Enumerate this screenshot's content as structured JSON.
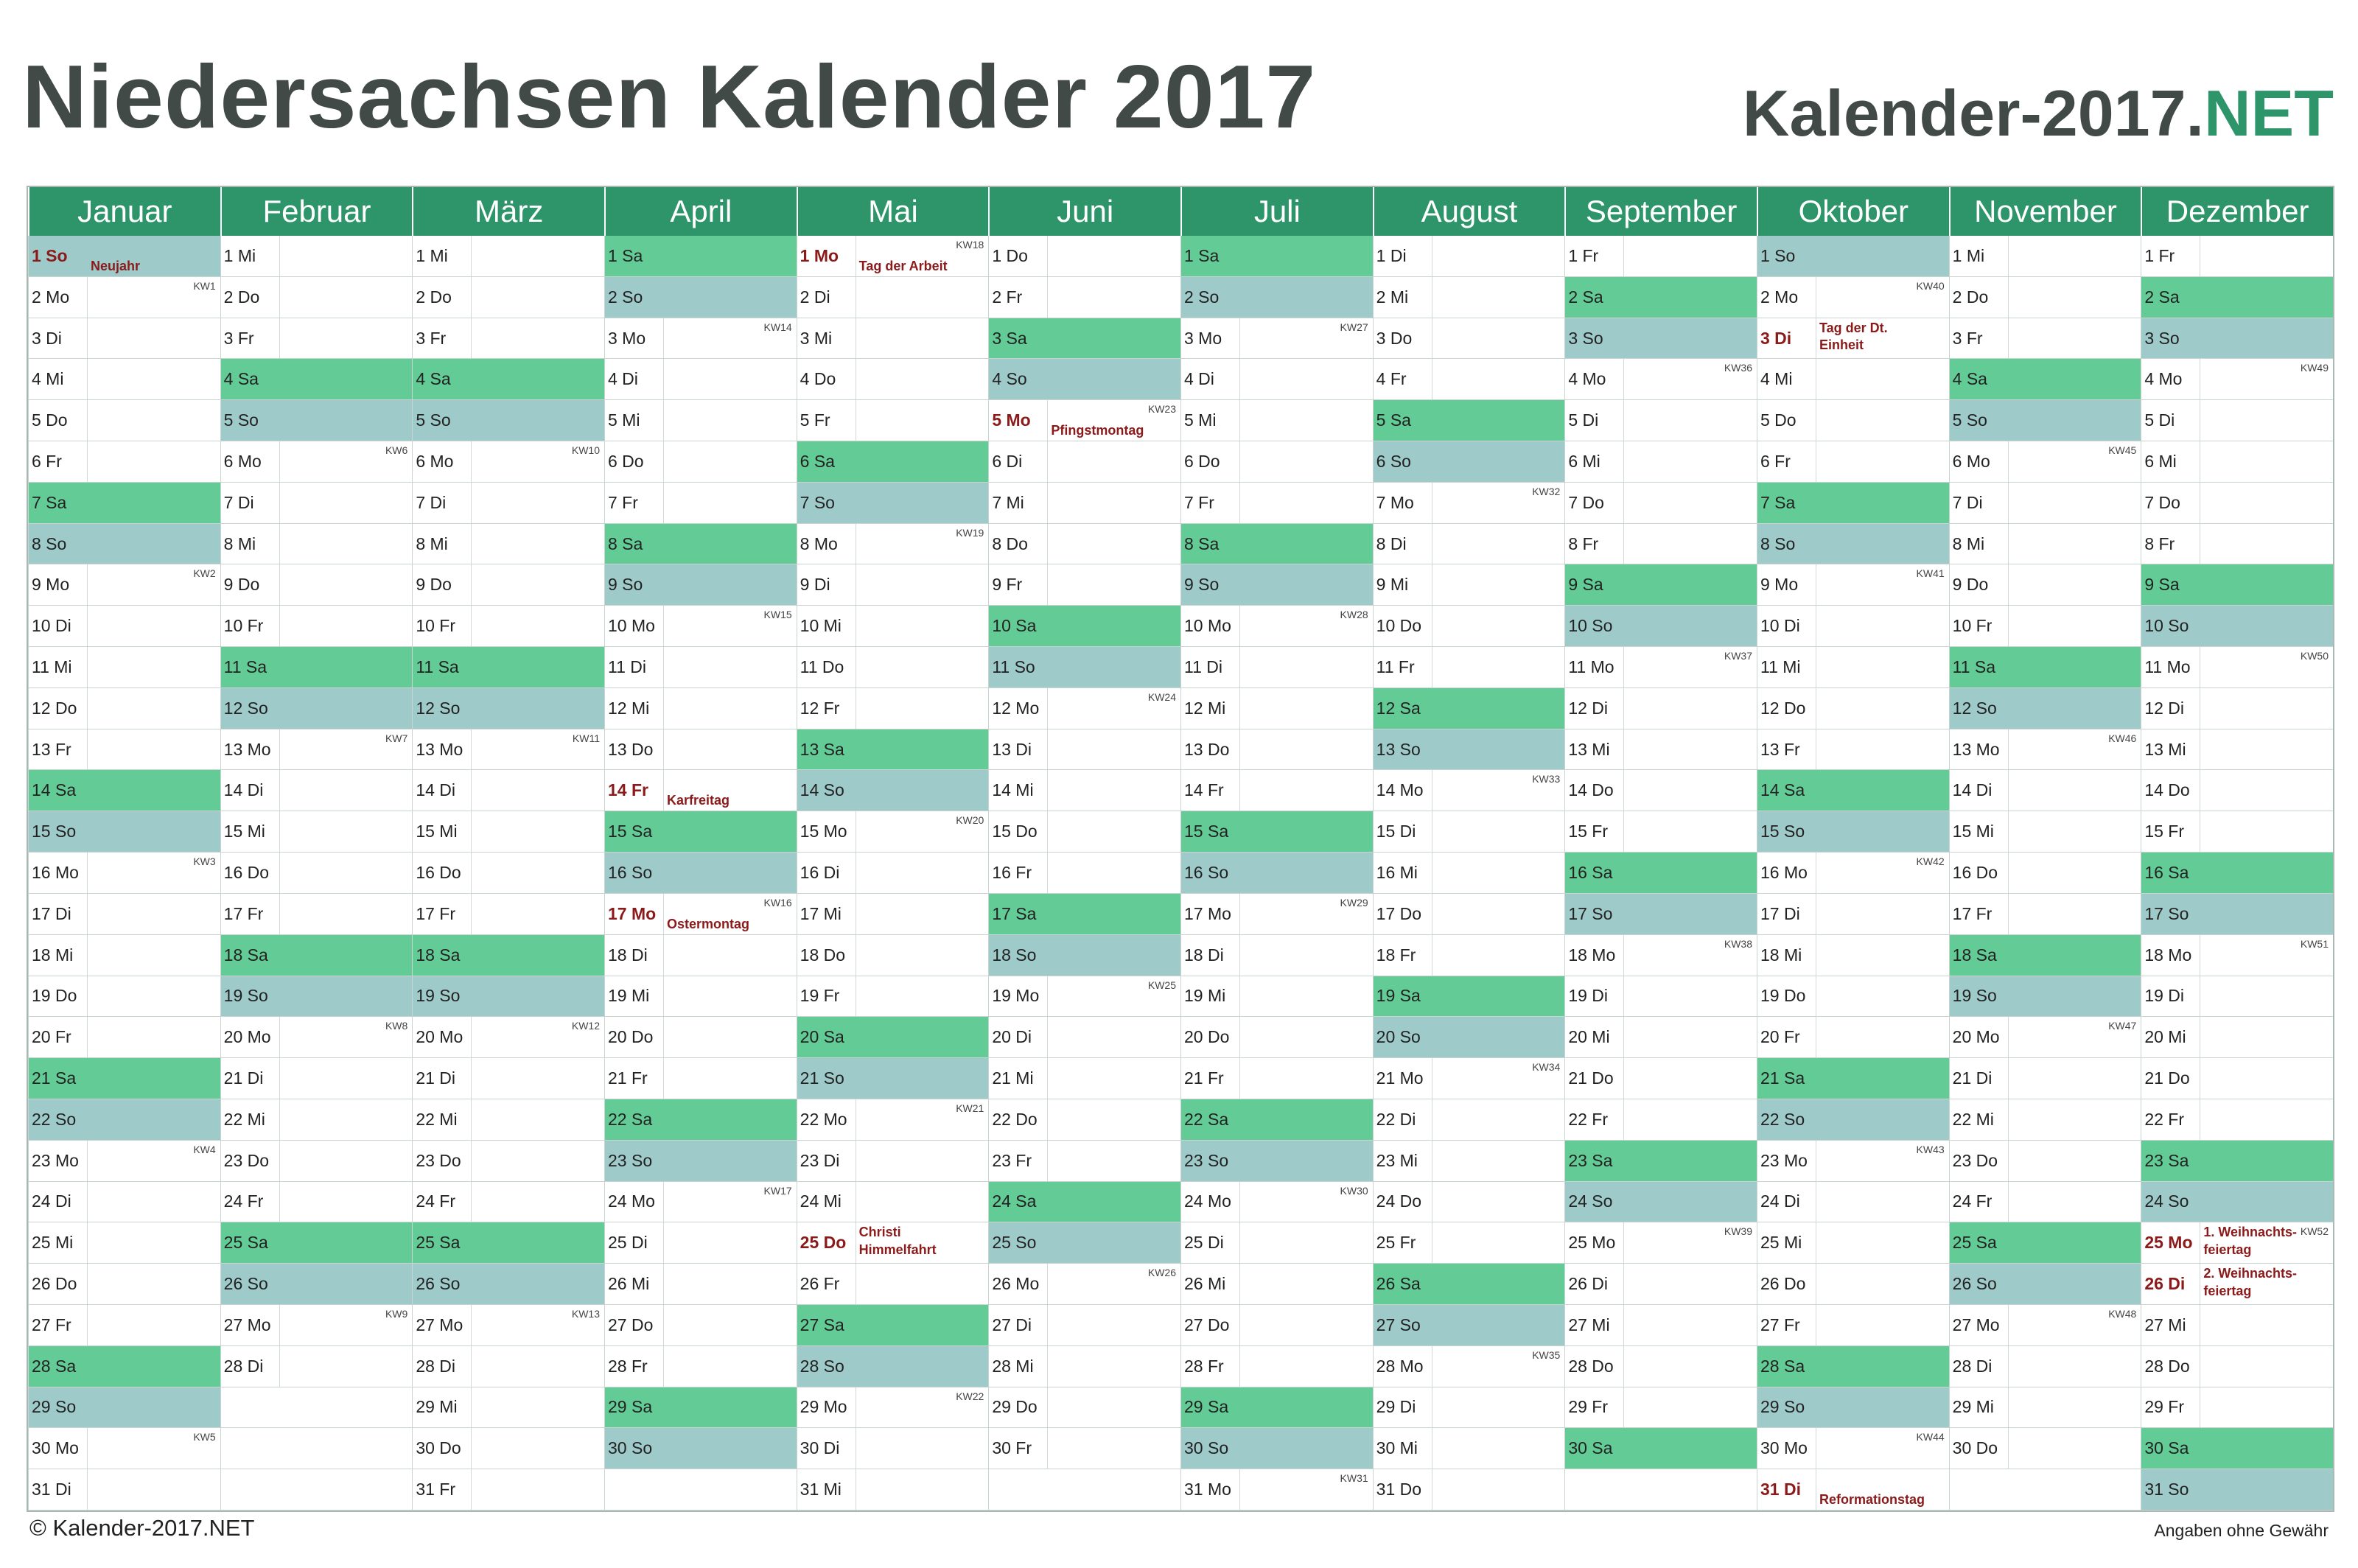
{
  "title": "Niedersachsen Kalender 2017",
  "brand": {
    "main": "Kalender-2017.",
    "accent": ".NET"
  },
  "colors": {
    "header": "#2e9469",
    "saturday": "#63cb95",
    "sunday": "#9ecac9",
    "holiday_text": "#8b1a1a",
    "title_text": "#414a47"
  },
  "footer": {
    "copyright": "© Kalender-2017.NET",
    "disclaimer": "Angaben ohne Gewähr"
  },
  "months": [
    {
      "name": "Januar",
      "first_weekday": 6,
      "days": 31
    },
    {
      "name": "Februar",
      "first_weekday": 2,
      "days": 28
    },
    {
      "name": "März",
      "first_weekday": 2,
      "days": 31
    },
    {
      "name": "April",
      "first_weekday": 5,
      "days": 30
    },
    {
      "name": "Mai",
      "first_weekday": 0,
      "days": 31
    },
    {
      "name": "Juni",
      "first_weekday": 3,
      "days": 30
    },
    {
      "name": "Juli",
      "first_weekday": 5,
      "days": 31
    },
    {
      "name": "August",
      "first_weekday": 1,
      "days": 31
    },
    {
      "name": "September",
      "first_weekday": 4,
      "days": 30
    },
    {
      "name": "Oktober",
      "first_weekday": 6,
      "days": 31
    },
    {
      "name": "November",
      "first_weekday": 2,
      "days": 30
    },
    {
      "name": "Dezember",
      "first_weekday": 4,
      "days": 31
    }
  ],
  "weekday_abbr": [
    "Mo",
    "Di",
    "Mi",
    "Do",
    "Fr",
    "Sa",
    "So"
  ],
  "week_label_prefix": "KW",
  "holidays": [
    {
      "month": 0,
      "day": 1,
      "name": "Neujahr"
    },
    {
      "month": 3,
      "day": 14,
      "name": "Karfreitag"
    },
    {
      "month": 3,
      "day": 17,
      "name": "Ostermontag"
    },
    {
      "month": 4,
      "day": 1,
      "name": "Tag der Arbeit"
    },
    {
      "month": 4,
      "day": 25,
      "name": "Christi Himmelfahrt"
    },
    {
      "month": 5,
      "day": 5,
      "name": "Pfingstmontag"
    },
    {
      "month": 9,
      "day": 3,
      "name": "Tag der Dt. Einheit"
    },
    {
      "month": 9,
      "day": 31,
      "name": "Reformationstag"
    },
    {
      "month": 11,
      "day": 25,
      "name": "1. Weihnachts-feiertag"
    },
    {
      "month": 11,
      "day": 26,
      "name": "2. Weihnachts-feiertag"
    }
  ]
}
